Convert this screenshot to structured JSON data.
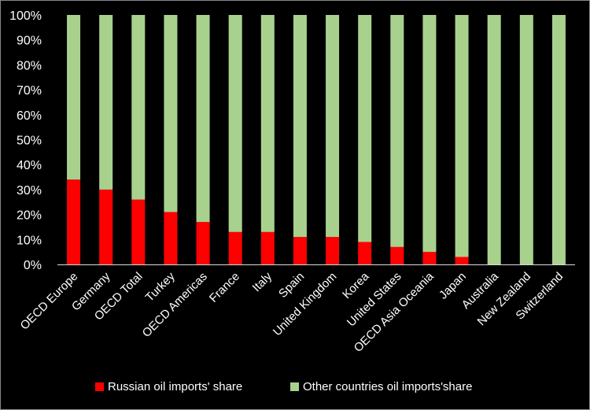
{
  "chart_data": {
    "type": "bar",
    "stacked": true,
    "title": "",
    "xlabel": "",
    "ylabel": "",
    "ylim": [
      0,
      100
    ],
    "y_ticks": [
      "0%",
      "10%",
      "20%",
      "30%",
      "40%",
      "50%",
      "60%",
      "70%",
      "80%",
      "90%",
      "100%"
    ],
    "categories": [
      "OECD Europe",
      "Germany",
      "OECD Total",
      "Turkey",
      "OECD Americas",
      "France",
      "Italy",
      "Spain",
      "United Kingdom",
      "Korea",
      "United States",
      "OECD Asia Oceania",
      "Japan",
      "Australia",
      "New Zealand",
      "Switzerland"
    ],
    "series": [
      {
        "name": "Russian oil imports' share",
        "color": "#ff0000",
        "values": [
          34,
          30,
          26,
          21,
          17,
          13,
          13,
          11,
          11,
          9,
          7,
          5,
          3,
          0,
          0,
          0
        ]
      },
      {
        "name": "Other countries oil imports'share",
        "color": "#a9d18e",
        "values": [
          66,
          70,
          74,
          79,
          83,
          87,
          87,
          89,
          89,
          91,
          93,
          95,
          97,
          100,
          100,
          100
        ]
      }
    ],
    "legend_position": "bottom"
  }
}
